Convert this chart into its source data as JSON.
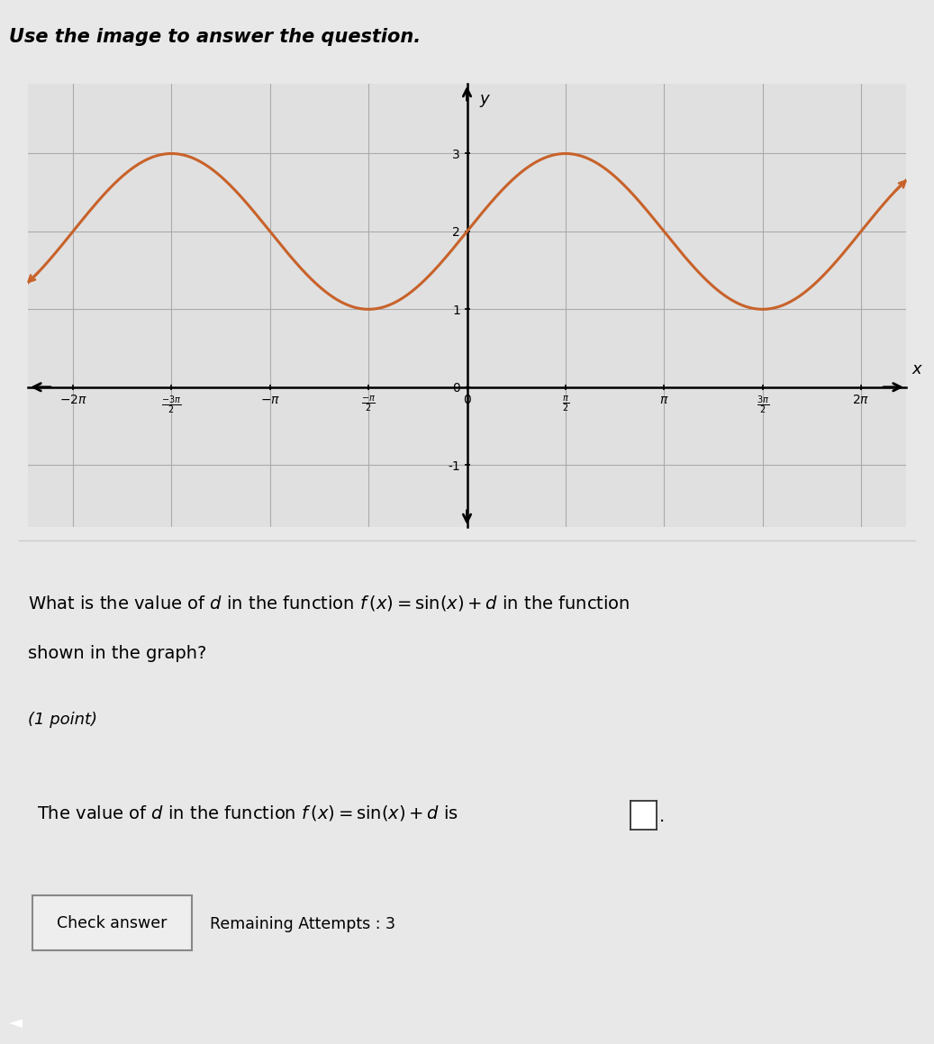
{
  "title_text": "Use the image to answer the question.",
  "graph_bg_color": "#e0e0e0",
  "page_bg_color": "#f0f0f0",
  "text_area_bg": "#f5f5f5",
  "curve_color": "#c8622a",
  "curve_linewidth": 2.2,
  "d_value": 2,
  "amplitude": 1,
  "xlim": [
    -7.0,
    7.0
  ],
  "ylim": [
    -1.8,
    3.9
  ],
  "yticks": [
    -1,
    0,
    1,
    2,
    3
  ],
  "xtick_values": [
    -6.283185307,
    -4.71238898,
    -3.141592654,
    -1.570796327,
    0,
    1.570796327,
    3.141592654,
    4.71238898,
    6.283185307
  ],
  "xlabel": "x",
  "ylabel": "y",
  "grid_color": "#aaaaaa",
  "question_line1": "What is the value of d in the function f (x) = sin(x) + d in the function",
  "question_line2": "shown in the graph?",
  "point_text": "(1 point)",
  "answer_line1": "The value of d in the function f (x) = sin(x) + d is",
  "button_text": "Check answer",
  "remaining_text": "Remaining Attempts : 3"
}
